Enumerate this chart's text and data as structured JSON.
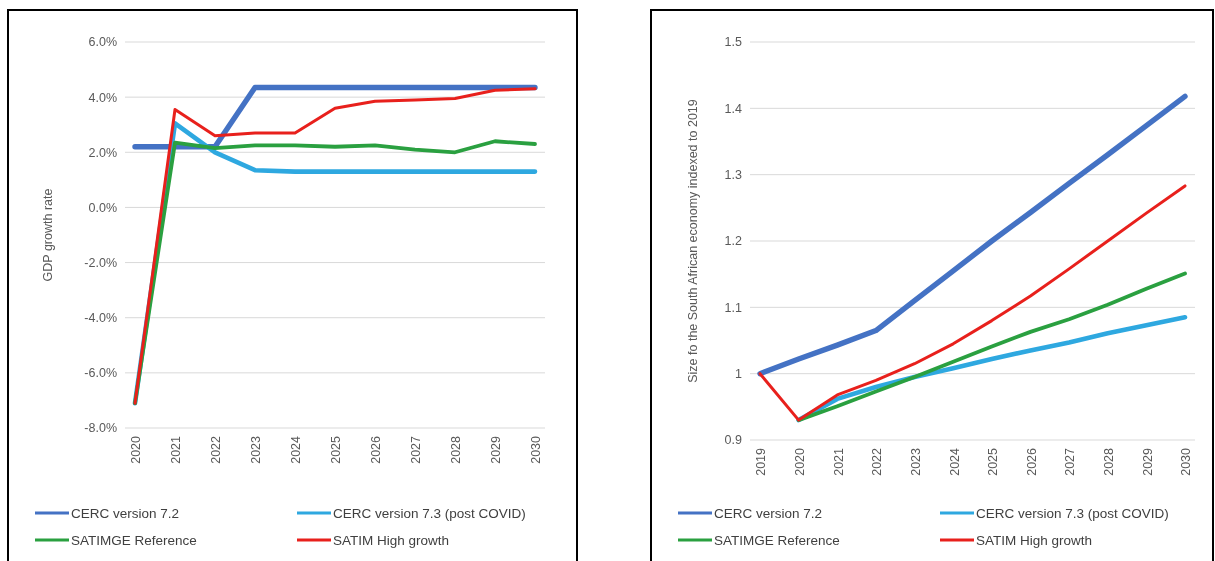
{
  "chart_data": [
    {
      "type": "line",
      "ylabel": "GDP growth rate",
      "categories": [
        "2020",
        "2021",
        "2022",
        "2023",
        "2024",
        "2025",
        "2026",
        "2027",
        "2028",
        "2029",
        "2030"
      ],
      "series": [
        {
          "name": "CERC version 7.2",
          "color": "#4472c4",
          "values": [
            2.2,
            2.2,
            2.2,
            4.35,
            4.35,
            4.35,
            4.35,
            4.35,
            4.35,
            4.35,
            4.35
          ]
        },
        {
          "name": "CERC version 7.3 (post COVID)",
          "color": "#2ea8e0",
          "values": [
            -7.1,
            3.05,
            2.0,
            1.35,
            1.3,
            1.3,
            1.3,
            1.3,
            1.3,
            1.3,
            1.3
          ]
        },
        {
          "name": "SATIMGE Reference",
          "color": "#2aa040",
          "values": [
            -7.1,
            2.35,
            2.15,
            2.25,
            2.25,
            2.2,
            2.25,
            2.1,
            2.0,
            2.4,
            2.3
          ]
        },
        {
          "name": "SATIM High growth",
          "color": "#e8201c",
          "values": [
            -7.1,
            3.55,
            2.6,
            2.7,
            2.7,
            3.6,
            3.85,
            3.9,
            3.95,
            4.25,
            4.3
          ]
        }
      ],
      "ylim": [
        -8,
        6
      ],
      "yticks": [
        {
          "value": -8,
          "label": "-8.0%"
        },
        {
          "value": -6,
          "label": "-6.0%"
        },
        {
          "value": -4,
          "label": "-4.0%"
        },
        {
          "value": -2,
          "label": "-2.0%"
        },
        {
          "value": 0,
          "label": "0.0%"
        },
        {
          "value": 2,
          "label": "2.0%"
        },
        {
          "value": 4,
          "label": "4.0%"
        },
        {
          "value": 6,
          "label": "6.0%"
        }
      ],
      "grid": "y",
      "legend": "bottom",
      "marker": "none",
      "line_style": "solid"
    },
    {
      "type": "line",
      "ylabel": "Size fo the South African economy indexed to 2019",
      "categories": [
        "2019",
        "2020",
        "2021",
        "2022",
        "2023",
        "2024",
        "2025",
        "2026",
        "2027",
        "2028",
        "2029",
        "2030"
      ],
      "series": [
        {
          "name": "CERC version 7.2",
          "color": "#4472c4",
          "values": [
            1.0,
            1.022,
            1.043,
            1.065,
            1.11,
            1.155,
            1.2,
            1.243,
            1.287,
            1.33,
            1.374,
            1.418
          ]
        },
        {
          "name": "CERC version 7.3 (post COVID)",
          "color": "#2ea8e0",
          "values": [
            null,
            0.93,
            0.962,
            0.98,
            0.995,
            1.008,
            1.022,
            1.035,
            1.047,
            1.061,
            1.073,
            1.085
          ]
        },
        {
          "name": "SATIMGE Reference",
          "color": "#2aa040",
          "values": [
            null,
            0.93,
            0.951,
            0.973,
            0.995,
            1.018,
            1.041,
            1.063,
            1.082,
            1.104,
            1.128,
            1.151
          ]
        },
        {
          "name": "SATIM High growth",
          "color": "#e8201c",
          "values": [
            1.0,
            0.93,
            0.968,
            0.99,
            1.015,
            1.045,
            1.08,
            1.117,
            1.158,
            1.2,
            1.242,
            1.283
          ]
        }
      ],
      "ylim": [
        0.9,
        1.5
      ],
      "yticks": [
        0.9,
        1,
        1.1,
        1.2,
        1.3,
        1.4,
        1.5
      ],
      "grid": "y",
      "legend": "bottom",
      "marker": "none",
      "line_style": "solid"
    }
  ]
}
